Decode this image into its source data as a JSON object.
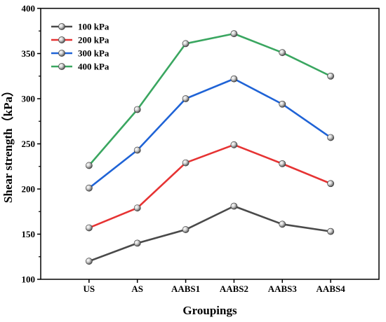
{
  "chart_data": {
    "type": "line",
    "categories": [
      "US",
      "AS",
      "AABS1",
      "AABS2",
      "AABS3",
      "AABS4"
    ],
    "xlabel": "Groupings",
    "ylabel": "Shear strength（kPa）",
    "ylim": [
      100,
      400
    ],
    "yticks": [
      100,
      150,
      200,
      250,
      300,
      350,
      400
    ],
    "grid": false,
    "legend_position": "top-left",
    "series": [
      {
        "name": "100 kPa",
        "color": "#4a4a4a",
        "values": [
          120,
          140,
          155,
          181,
          161,
          153
        ]
      },
      {
        "name": "200 kPa",
        "color": "#e63333",
        "values": [
          157,
          179,
          229,
          249,
          228,
          206
        ]
      },
      {
        "name": "300 kPa",
        "color": "#1f63d6",
        "values": [
          201,
          243,
          300,
          322,
          294,
          257
        ]
      },
      {
        "name": "400 kPa",
        "color": "#3aa660",
        "values": [
          226,
          288,
          361,
          372,
          351,
          325
        ]
      }
    ]
  }
}
